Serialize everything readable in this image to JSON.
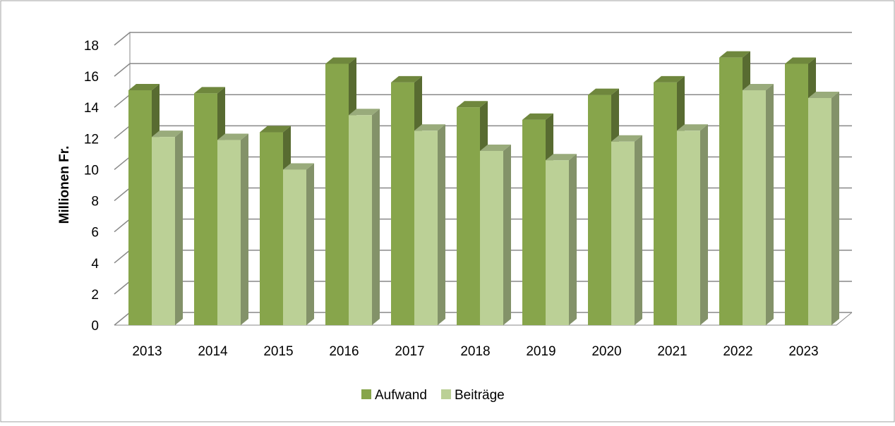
{
  "chart_data": {
    "type": "bar3d",
    "y_label": "Millionen Fr.",
    "categories": [
      "2013",
      "2014",
      "2015",
      "2016",
      "2017",
      "2018",
      "2019",
      "2020",
      "2021",
      "2022",
      "2023"
    ],
    "series": [
      {
        "name": "Aufwand",
        "color": "#87a54b",
        "values": [
          15.1,
          14.9,
          12.4,
          16.8,
          15.6,
          14.0,
          13.2,
          14.8,
          15.6,
          17.2,
          16.8
        ]
      },
      {
        "name": "Beiträge",
        "color": "#bbd096",
        "values": [
          12.1,
          11.9,
          10.0,
          13.5,
          12.5,
          11.2,
          10.6,
          11.8,
          12.5,
          15.1,
          14.6
        ]
      }
    ],
    "ylim": [
      0,
      18
    ],
    "yticks": [
      0,
      2,
      4,
      6,
      8,
      10,
      12,
      14,
      16,
      18
    ],
    "grid": true,
    "legend": "bottom"
  }
}
